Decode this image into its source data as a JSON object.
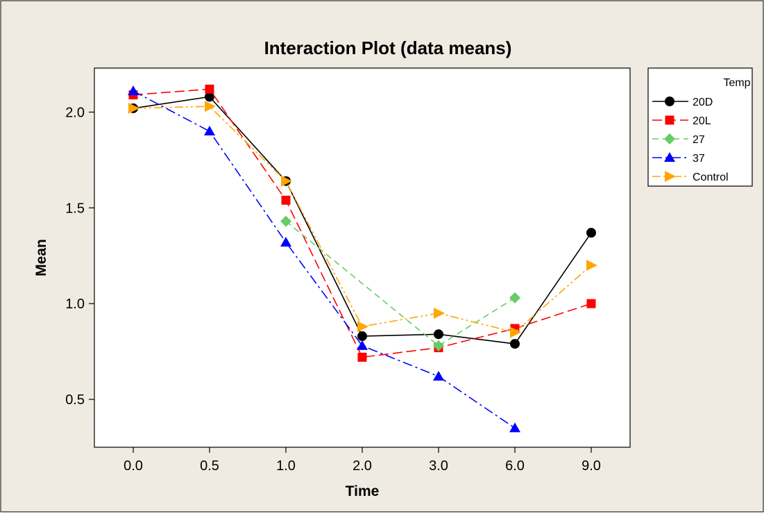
{
  "chart_data": {
    "type": "line",
    "title": "Interaction Plot (data means)",
    "xlabel": "Time",
    "ylabel": "Mean",
    "categories": [
      "0.0",
      "0.5",
      "1.0",
      "2.0",
      "3.0",
      "6.0",
      "9.0"
    ],
    "yticks": [
      0.5,
      1.0,
      1.5,
      2.0
    ],
    "ytick_labels": [
      "0.5",
      "1.0",
      "1.5",
      "2.0"
    ],
    "ylim": [
      0.25,
      2.23
    ],
    "grid": false,
    "legend_position": "right",
    "legend_title": "Temp",
    "series": [
      {
        "name": "20D",
        "values": [
          2.02,
          2.08,
          1.64,
          0.83,
          0.84,
          0.79,
          1.37
        ],
        "color": "#000000",
        "marker": "circle",
        "dash": "solid"
      },
      {
        "name": "20L",
        "values": [
          2.09,
          2.12,
          1.54,
          0.72,
          0.77,
          0.87,
          1.0
        ],
        "color": "#ff0000",
        "marker": "square",
        "dash": "long-dash"
      },
      {
        "name": "27",
        "values": [
          null,
          null,
          1.43,
          null,
          0.78,
          1.03,
          null
        ],
        "color": "#66cc66",
        "marker": "diamond",
        "dash": "dash"
      },
      {
        "name": "37",
        "values": [
          2.11,
          1.9,
          1.32,
          0.78,
          0.62,
          0.35,
          null
        ],
        "color": "#0000ff",
        "marker": "triangle-up",
        "dash": "dash-dot"
      },
      {
        "name": "Control",
        "values": [
          2.02,
          2.03,
          1.64,
          0.88,
          0.95,
          0.85,
          1.2
        ],
        "color": "#ffa500",
        "marker": "triangle-right",
        "dash": "dash-dot-dot"
      }
    ],
    "background_color": "#efebe2",
    "plot_background_color": "#ffffff"
  }
}
